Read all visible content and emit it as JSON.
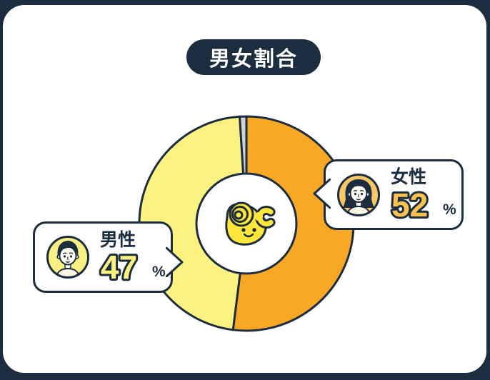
{
  "theme": {
    "navy": "#1C2D3F",
    "card_bg": "#FFFFFF",
    "female_color": "#F9A826",
    "male_color": "#FCF282",
    "other_color": "#D2D2D2",
    "female_value_fill": "#FBC24F",
    "male_value_fill": "#FCF282",
    "mascot_yellow": "#FFE63A",
    "female_avatar_bg": "#F8C766",
    "male_avatar_bg": "#FBF083",
    "skin": "#FFFDF4",
    "shirt": "#FCF6E5"
  },
  "title": {
    "label": "男女割合"
  },
  "chart_data": {
    "type": "pie",
    "title": "男女割合",
    "donut": true,
    "direction": "clockwise",
    "start_angle_deg": 0,
    "labels": [
      "女性",
      "男性",
      ""
    ],
    "values": [
      52,
      47,
      1
    ],
    "colors": [
      "#F9A826",
      "#FCF282",
      "#D2D2D2"
    ],
    "center_icon": "hand-mascot",
    "legend": "none"
  },
  "callouts": {
    "female": {
      "label": "女性",
      "value": "52",
      "unit": "%"
    },
    "male": {
      "label": "男性",
      "value": "47",
      "unit": "%"
    }
  }
}
